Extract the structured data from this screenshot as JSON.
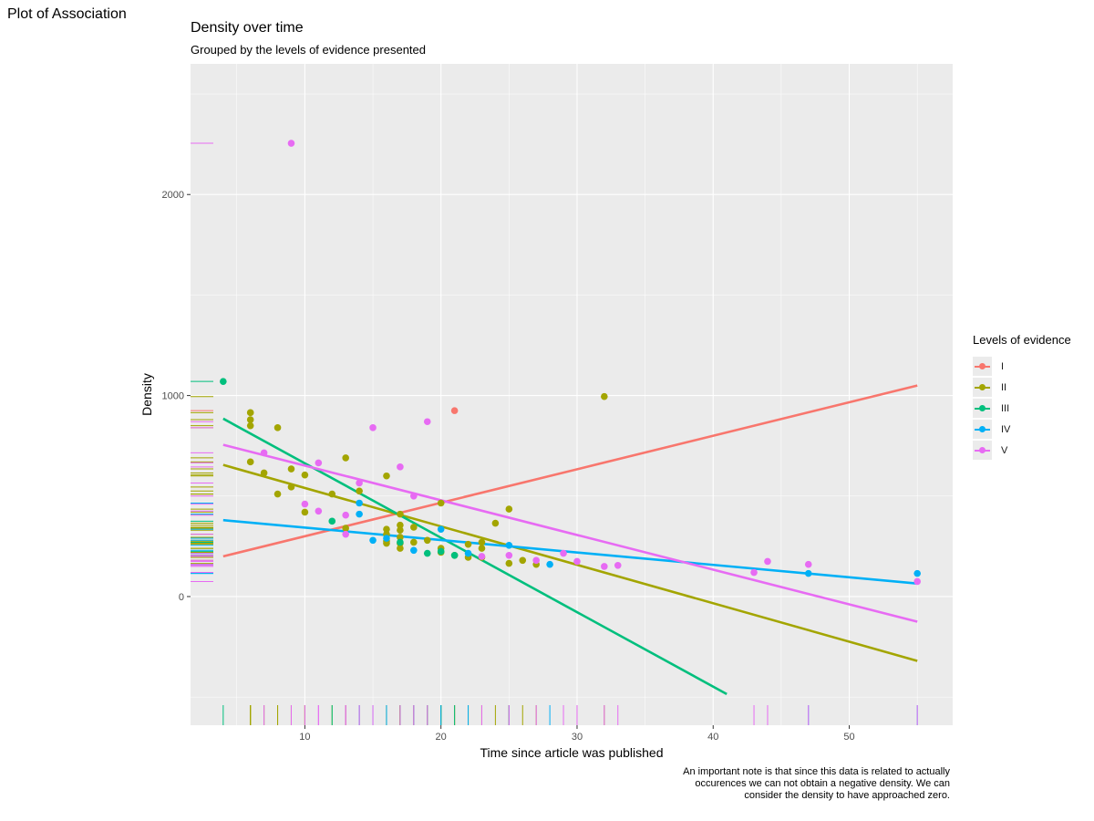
{
  "page_title": "Plot of Association",
  "chart_data": {
    "type": "scatter",
    "title": "Density over time",
    "subtitle": "Grouped by the levels of evidence presented",
    "xlabel": "Time since article was published",
    "ylabel": "Density",
    "caption": "An important note is that since this data is related to actually occurences we can not obtain a negative density. We can consider the density to have approached zero.",
    "xlim": [
      1.6,
      57.6
    ],
    "ylim": [
      -640,
      2650
    ],
    "x_ticks": [
      10,
      20,
      30,
      40,
      50
    ],
    "y_ticks": [
      0,
      1000,
      2000
    ],
    "grid": true,
    "legend_title": "Levels of evidence",
    "legend_position": "right",
    "rugs": true,
    "series": [
      {
        "name": "I",
        "color": "#F8766D",
        "points": [
          [
            21,
            925
          ]
        ],
        "trend": [
          [
            4,
            200
          ],
          [
            55,
            1050
          ]
        ]
      },
      {
        "name": "II",
        "color": "#A3A500",
        "points": [
          [
            6,
            915
          ],
          [
            6,
            880
          ],
          [
            6,
            850
          ],
          [
            6,
            670
          ],
          [
            7,
            615
          ],
          [
            8,
            840
          ],
          [
            8,
            510
          ],
          [
            9,
            635
          ],
          [
            9,
            545
          ],
          [
            10,
            605
          ],
          [
            10,
            420
          ],
          [
            12,
            510
          ],
          [
            13,
            690
          ],
          [
            13,
            340
          ],
          [
            14,
            525
          ],
          [
            16,
            600
          ],
          [
            16,
            335
          ],
          [
            16,
            310
          ],
          [
            16,
            275
          ],
          [
            16,
            265
          ],
          [
            17,
            410
          ],
          [
            17,
            355
          ],
          [
            17,
            330
          ],
          [
            17,
            295
          ],
          [
            17,
            265
          ],
          [
            17,
            240
          ],
          [
            18,
            345
          ],
          [
            18,
            270
          ],
          [
            19,
            280
          ],
          [
            20,
            465
          ],
          [
            20,
            240
          ],
          [
            20,
            220
          ],
          [
            21,
            205
          ],
          [
            22,
            260
          ],
          [
            22,
            195
          ],
          [
            23,
            270
          ],
          [
            23,
            240
          ],
          [
            23,
            195
          ],
          [
            24,
            365
          ],
          [
            25,
            435
          ],
          [
            25,
            165
          ],
          [
            26,
            180
          ],
          [
            27,
            160
          ],
          [
            32,
            995
          ]
        ],
        "trend": [
          [
            4,
            655
          ],
          [
            55,
            -320
          ]
        ]
      },
      {
        "name": "III",
        "color": "#00BF7D",
        "points": [
          [
            4,
            1070
          ],
          [
            12,
            375
          ],
          [
            17,
            270
          ],
          [
            19,
            215
          ],
          [
            20,
            225
          ],
          [
            21,
            205
          ]
        ],
        "trend": [
          [
            4,
            885
          ],
          [
            41,
            -485
          ]
        ]
      },
      {
        "name": "IV",
        "color": "#00B0F6",
        "points": [
          [
            14,
            465
          ],
          [
            14,
            410
          ],
          [
            15,
            280
          ],
          [
            16,
            290
          ],
          [
            18,
            230
          ],
          [
            20,
            335
          ],
          [
            22,
            215
          ],
          [
            25,
            255
          ],
          [
            28,
            160
          ],
          [
            47,
            115
          ],
          [
            55,
            115
          ]
        ],
        "trend": [
          [
            4,
            380
          ],
          [
            55,
            65
          ]
        ]
      },
      {
        "name": "V",
        "color": "#E76BF3",
        "points": [
          [
            9,
            2255
          ],
          [
            7,
            715
          ],
          [
            11,
            665
          ],
          [
            11,
            425
          ],
          [
            10,
            460
          ],
          [
            13,
            405
          ],
          [
            13,
            310
          ],
          [
            14,
            565
          ],
          [
            15,
            840
          ],
          [
            17,
            645
          ],
          [
            18,
            500
          ],
          [
            19,
            870
          ],
          [
            23,
            200
          ],
          [
            25,
            205
          ],
          [
            27,
            180
          ],
          [
            29,
            215
          ],
          [
            30,
            175
          ],
          [
            32,
            150
          ],
          [
            33,
            155
          ],
          [
            43,
            120
          ],
          [
            44,
            175
          ],
          [
            47,
            160
          ],
          [
            55,
            75
          ]
        ],
        "trend": [
          [
            4,
            755
          ],
          [
            55,
            -125
          ]
        ]
      }
    ]
  }
}
